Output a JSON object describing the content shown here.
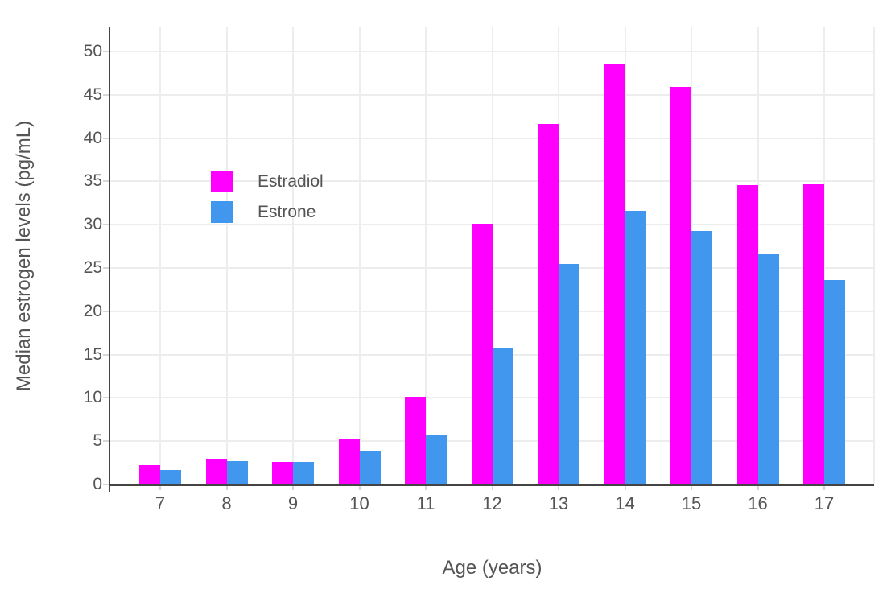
{
  "chart_data": {
    "type": "bar",
    "title": "",
    "xlabel": "Age (years)",
    "ylabel": "Median estrogen levels (pg/mL)",
    "categories": [
      "7",
      "8",
      "9",
      "10",
      "11",
      "12",
      "13",
      "14",
      "15",
      "16",
      "17"
    ],
    "series": [
      {
        "name": "Estradiol",
        "color": "#ff00ff",
        "values": [
          2.2,
          3.0,
          2.6,
          5.3,
          10.1,
          30.1,
          41.6,
          48.6,
          45.9,
          34.6,
          34.7
        ]
      },
      {
        "name": "Estrone",
        "color": "#4196ee",
        "values": [
          1.7,
          2.7,
          2.6,
          3.9,
          5.8,
          15.7,
          25.5,
          31.6,
          29.3,
          26.6,
          23.6
        ]
      }
    ],
    "ylim": [
      0,
      50
    ],
    "yticks": [
      0,
      5,
      10,
      15,
      20,
      25,
      30,
      35,
      40,
      45,
      50
    ],
    "grid": true,
    "legend_position": "inside-upper-left",
    "bar_mode": "grouped"
  },
  "style": {
    "background": "#ffffff",
    "grid_color": "#ededed",
    "axis_line_color": "#444444",
    "tick_color": "#d6d6d6",
    "text_color": "#545454"
  }
}
